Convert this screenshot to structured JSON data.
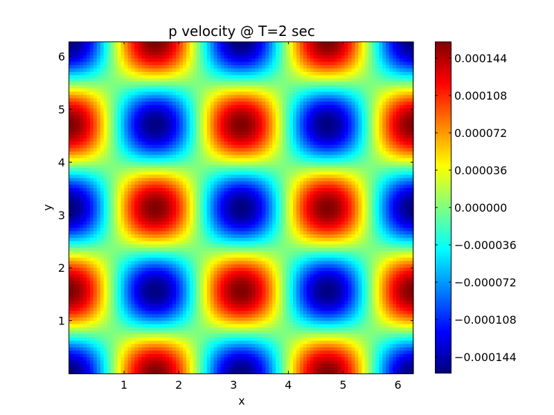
{
  "chart_data": {
    "type": "heatmap",
    "title": "p velocity @ T=2 sec",
    "xlabel": "x",
    "ylabel": "y",
    "xlim": [
      0.0,
      6.2832
    ],
    "ylim": [
      0.0,
      6.2832
    ],
    "x_ticks": [
      1,
      2,
      3,
      4,
      5,
      6
    ],
    "y_ticks": [
      1,
      2,
      3,
      4,
      5,
      6
    ],
    "field": {
      "expression": "p(x,y) = -A * cos(2x) * cos(2y)",
      "amplitude": 0.00016,
      "grid_resolution": 100
    },
    "colormap": "jet",
    "colorbar": {
      "vmin": -0.00016,
      "vmax": 0.00016,
      "ticks": [
        {
          "value": 0.000144,
          "label": "0.000144"
        },
        {
          "value": 0.000108,
          "label": "0.000108"
        },
        {
          "value": 7.2e-05,
          "label": "0.000072"
        },
        {
          "value": 3.6e-05,
          "label": "0.000036"
        },
        {
          "value": 0.0,
          "label": "0.000000"
        },
        {
          "value": -3.6e-05,
          "label": "−0.000036"
        },
        {
          "value": -7.2e-05,
          "label": "−0.000072"
        },
        {
          "value": -0.000108,
          "label": "−0.000108"
        },
        {
          "value": -0.000144,
          "label": "−0.000144"
        }
      ]
    },
    "grid": false,
    "legend": "none"
  },
  "colors": {
    "frame": "#000000",
    "background": "#ffffff"
  }
}
